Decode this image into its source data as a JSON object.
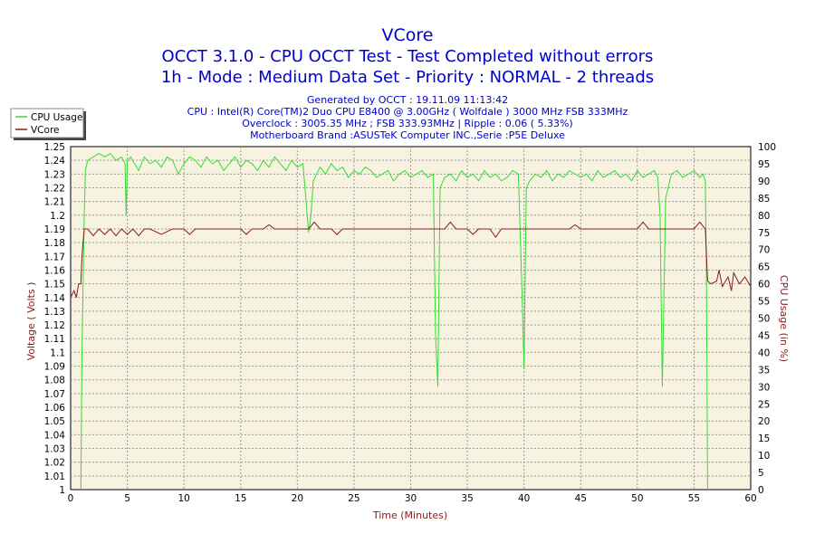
{
  "chart_data": {
    "type": "line",
    "title": "VCore",
    "subtitle_lines": [
      "OCCT 3.1.0 - CPU OCCT Test - Test Completed without errors",
      "1h - Mode : Medium Data Set - Priority : NORMAL - 2 threads"
    ],
    "info_lines": [
      "Generated by OCCT : 19.11.09 11:13:42",
      "CPU : Intel(R) Core(TM)2 Duo CPU E8400 @ 3.00GHz ( Wolfdale ) 3000 MHz FSB 333MHz",
      "Overclock : 3005.35 MHz ; FSB 333.93MHz | Ripple : 0.06 ( 5.33%)",
      "Motherboard Brand :ASUSTeK Computer INC.,Serie :P5E Deluxe"
    ],
    "xlabel": "Time (Minutes)",
    "ylabel_left": "Voltage ( Volts )",
    "ylabel_right": "CPU Usage (in %)",
    "xlim": [
      0,
      60
    ],
    "ylim_left": [
      1,
      1.25
    ],
    "ylim_right": [
      0,
      100
    ],
    "x_ticks": [
      "0",
      "5",
      "10",
      "15",
      "20",
      "25",
      "30",
      "35",
      "40",
      "45",
      "50",
      "55",
      "60"
    ],
    "y_ticks_left": [
      "1",
      "1.01",
      "1.02",
      "1.03",
      "1.04",
      "1.05",
      "1.06",
      "1.07",
      "1.08",
      "1.09",
      "1.1",
      "1.11",
      "1.12",
      "1.13",
      "1.14",
      "1.15",
      "1.16",
      "1.17",
      "1.18",
      "1.19",
      "1.2",
      "1.21",
      "1.22",
      "1.23",
      "1.24",
      "1.25"
    ],
    "y_ticks_right": [
      "0",
      "5",
      "10",
      "15",
      "20",
      "25",
      "30",
      "35",
      "40",
      "45",
      "50",
      "55",
      "60",
      "65",
      "70",
      "75",
      "80",
      "85",
      "90",
      "95",
      "100"
    ],
    "grid": true,
    "legend_position": "top-left",
    "colors": {
      "cpu": "#33dd33",
      "vcore": "#8b1a1a",
      "title": "#0000cc",
      "axis_label": "#8b1a1a",
      "plot_bg": "#f7f3e0"
    },
    "series": [
      {
        "name": "CPU Usage",
        "axis": "right",
        "x": [
          0.9,
          1.0,
          1.1,
          1.2,
          1.3,
          1.5,
          2.0,
          2.5,
          3.0,
          3.5,
          4.0,
          4.5,
          4.8,
          4.9,
          5.0,
          5.3,
          6.0,
          6.5,
          7.0,
          7.5,
          8.0,
          8.5,
          9.0,
          9.5,
          10.0,
          10.5,
          11.0,
          11.5,
          12.0,
          12.5,
          13.0,
          13.5,
          14.0,
          14.5,
          15.0,
          15.5,
          16.0,
          16.5,
          17.0,
          17.5,
          18.0,
          18.5,
          19.0,
          19.5,
          20.0,
          20.5,
          21.0,
          21.2,
          21.4,
          22.0,
          22.5,
          23.0,
          23.5,
          24.0,
          24.5,
          25.0,
          25.5,
          26.0,
          26.5,
          27.0,
          27.5,
          28.0,
          28.5,
          29.0,
          29.5,
          30.0,
          30.5,
          31.0,
          31.5,
          32.0,
          32.2,
          32.4,
          32.6,
          33.0,
          33.5,
          34.0,
          34.5,
          35.0,
          35.5,
          36.0,
          36.5,
          37.0,
          37.5,
          38.0,
          38.5,
          39.0,
          39.5,
          39.8,
          40.0,
          40.2,
          40.5,
          41.0,
          41.5,
          42.0,
          42.5,
          43.0,
          43.5,
          44.0,
          44.5,
          45.0,
          45.5,
          46.0,
          46.5,
          47.0,
          47.5,
          48.0,
          48.5,
          49.0,
          49.5,
          50.0,
          50.5,
          51.0,
          51.5,
          51.8,
          52.0,
          52.2,
          52.5,
          53.0,
          53.5,
          54.0,
          54.5,
          55.0,
          55.5,
          55.8,
          56.0,
          56.1,
          56.2
        ],
        "values": [
          0,
          40,
          60,
          80,
          93,
          96,
          97,
          98,
          97,
          98,
          96,
          97,
          95,
          80,
          96,
          97,
          93,
          97,
          95,
          96,
          94,
          97,
          96,
          92,
          95,
          97,
          96,
          94,
          97,
          95,
          96,
          93,
          95,
          97,
          94,
          96,
          95,
          93,
          96,
          94,
          97,
          95,
          93,
          96,
          94,
          95,
          75,
          80,
          90,
          94,
          92,
          95,
          93,
          94,
          91,
          93,
          92,
          94,
          93,
          91,
          92,
          93,
          90,
          92,
          93,
          91,
          92,
          93,
          91,
          92,
          45,
          30,
          88,
          91,
          92,
          90,
          93,
          91,
          92,
          90,
          93,
          91,
          92,
          90,
          91,
          93,
          92,
          60,
          35,
          88,
          90,
          92,
          91,
          93,
          90,
          92,
          91,
          93,
          92,
          91,
          92,
          90,
          93,
          91,
          92,
          93,
          91,
          92,
          90,
          93,
          91,
          92,
          93,
          91,
          80,
          30,
          85,
          92,
          93,
          91,
          92,
          93,
          91,
          92,
          90,
          60,
          0
        ]
      },
      {
        "name": "VCore",
        "axis": "left",
        "x": [
          0.0,
          0.3,
          0.5,
          0.7,
          0.9,
          1.0,
          1.2,
          1.5,
          2.0,
          2.5,
          3.0,
          3.5,
          4.0,
          4.5,
          5.0,
          5.5,
          6.0,
          6.5,
          7.0,
          8.0,
          9.0,
          10.0,
          10.5,
          11.0,
          12.0,
          13.0,
          14.0,
          15.0,
          15.5,
          16.0,
          17.0,
          17.5,
          18.0,
          19.0,
          20.0,
          21.0,
          21.5,
          22.0,
          23.0,
          23.5,
          24.0,
          25.0,
          26.0,
          27.0,
          28.0,
          29.0,
          30.0,
          31.0,
          32.0,
          33.0,
          33.5,
          34.0,
          35.0,
          35.5,
          36.0,
          37.0,
          37.5,
          38.0,
          39.0,
          40.0,
          41.0,
          42.0,
          43.0,
          44.0,
          44.5,
          45.0,
          46.0,
          47.0,
          48.0,
          49.0,
          50.0,
          50.5,
          51.0,
          52.0,
          53.0,
          54.0,
          55.0,
          55.5,
          56.0,
          56.2,
          56.5,
          57.0,
          57.2,
          57.5,
          58.0,
          58.3,
          58.5,
          59.0,
          59.5,
          60.0
        ],
        "values": [
          1.14,
          1.145,
          1.14,
          1.15,
          1.15,
          1.17,
          1.19,
          1.19,
          1.185,
          1.19,
          1.186,
          1.19,
          1.185,
          1.19,
          1.186,
          1.19,
          1.185,
          1.19,
          1.19,
          1.186,
          1.19,
          1.19,
          1.186,
          1.19,
          1.19,
          1.19,
          1.19,
          1.19,
          1.186,
          1.19,
          1.19,
          1.193,
          1.19,
          1.19,
          1.19,
          1.19,
          1.195,
          1.19,
          1.19,
          1.186,
          1.19,
          1.19,
          1.19,
          1.19,
          1.19,
          1.19,
          1.19,
          1.19,
          1.19,
          1.19,
          1.195,
          1.19,
          1.19,
          1.186,
          1.19,
          1.19,
          1.184,
          1.19,
          1.19,
          1.19,
          1.19,
          1.19,
          1.19,
          1.19,
          1.193,
          1.19,
          1.19,
          1.19,
          1.19,
          1.19,
          1.19,
          1.195,
          1.19,
          1.19,
          1.19,
          1.19,
          1.19,
          1.195,
          1.19,
          1.152,
          1.15,
          1.152,
          1.16,
          1.148,
          1.155,
          1.145,
          1.158,
          1.15,
          1.155,
          1.148
        ]
      }
    ]
  }
}
